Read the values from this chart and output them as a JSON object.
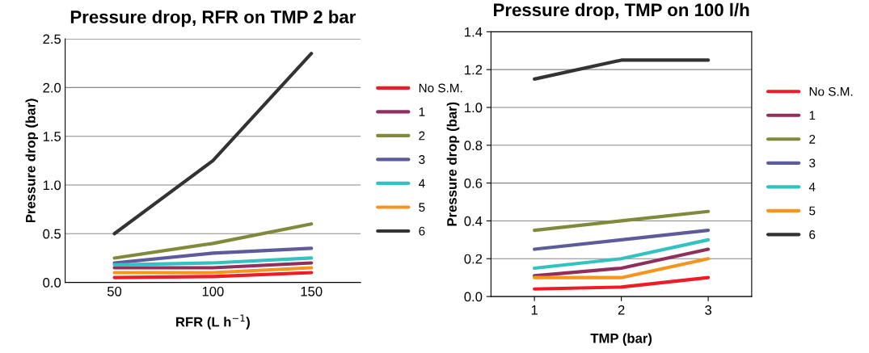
{
  "chart_data": [
    {
      "type": "line",
      "title": "Pressure drop, RFR on TMP 2 bar",
      "xlabel": "RFR (L h$^{−1}$)",
      "ylabel": "Pressure drop (bar)",
      "categories": [
        "50",
        "100",
        "150"
      ],
      "ylim": [
        0,
        2.5
      ],
      "yticks": [
        {
          "value": 0,
          "label": "0.0"
        },
        {
          "value": 0.5,
          "label": "0.5"
        },
        {
          "value": 1,
          "label": "1.0"
        },
        {
          "value": 1.5,
          "label": "1.5"
        },
        {
          "value": 2,
          "label": "2.0"
        },
        {
          "value": 2.5,
          "label": "2.5"
        }
      ],
      "grid": "y",
      "legend": "right",
      "marker": "none",
      "series": [
        {
          "name": "No S.M.",
          "color": "#ee1c25",
          "values": [
            0.05,
            0.06,
            0.1
          ]
        },
        {
          "name": "1",
          "color": "#8e2f5c",
          "values": [
            0.15,
            0.15,
            0.2
          ]
        },
        {
          "name": "2",
          "color": "#808a3a",
          "values": [
            0.25,
            0.4,
            0.6
          ]
        },
        {
          "name": "3",
          "color": "#5c5c9c",
          "values": [
            0.2,
            0.3,
            0.35
          ]
        },
        {
          "name": "4",
          "color": "#33c1c1",
          "values": [
            0.18,
            0.2,
            0.25
          ]
        },
        {
          "name": "5",
          "color": "#f7941d",
          "values": [
            0.1,
            0.1,
            0.15
          ]
        },
        {
          "name": "6",
          "color": "#333333",
          "values": [
            0.5,
            1.25,
            2.35
          ]
        }
      ]
    },
    {
      "type": "line",
      "title": "Pressure drop, TMP on 100 l/h",
      "xlabel": "TMP (bar)",
      "ylabel": "Pressure drop (bar)",
      "categories": [
        "1",
        "2",
        "3"
      ],
      "ylim": [
        0,
        1.4
      ],
      "yticks": [
        {
          "value": 0,
          "label": "0.0"
        },
        {
          "value": 0.2,
          "label": "0.2"
        },
        {
          "value": 0.4,
          "label": "0.4"
        },
        {
          "value": 0.6,
          "label": "0.6"
        },
        {
          "value": 0.8,
          "label": "0.8"
        },
        {
          "value": 1,
          "label": "1.0"
        },
        {
          "value": 1.2,
          "label": "1.2"
        },
        {
          "value": 1.4,
          "label": "1.4"
        }
      ],
      "grid": "y",
      "legend": "right",
      "marker": "none",
      "series": [
        {
          "name": "No S.M.",
          "color": "#ee1c25",
          "values": [
            0.04,
            0.05,
            0.1
          ]
        },
        {
          "name": "1",
          "color": "#8e2f5c",
          "values": [
            0.11,
            0.15,
            0.25
          ]
        },
        {
          "name": "2",
          "color": "#808a3a",
          "values": [
            0.35,
            0.4,
            0.45
          ]
        },
        {
          "name": "3",
          "color": "#5c5c9c",
          "values": [
            0.25,
            0.3,
            0.35
          ]
        },
        {
          "name": "4",
          "color": "#33c1c1",
          "values": [
            0.15,
            0.2,
            0.3
          ]
        },
        {
          "name": "5",
          "color": "#f7941d",
          "values": [
            0.1,
            0.1,
            0.2
          ]
        },
        {
          "name": "6",
          "color": "#333333",
          "values": [
            1.15,
            1.25,
            1.25
          ]
        }
      ]
    }
  ]
}
